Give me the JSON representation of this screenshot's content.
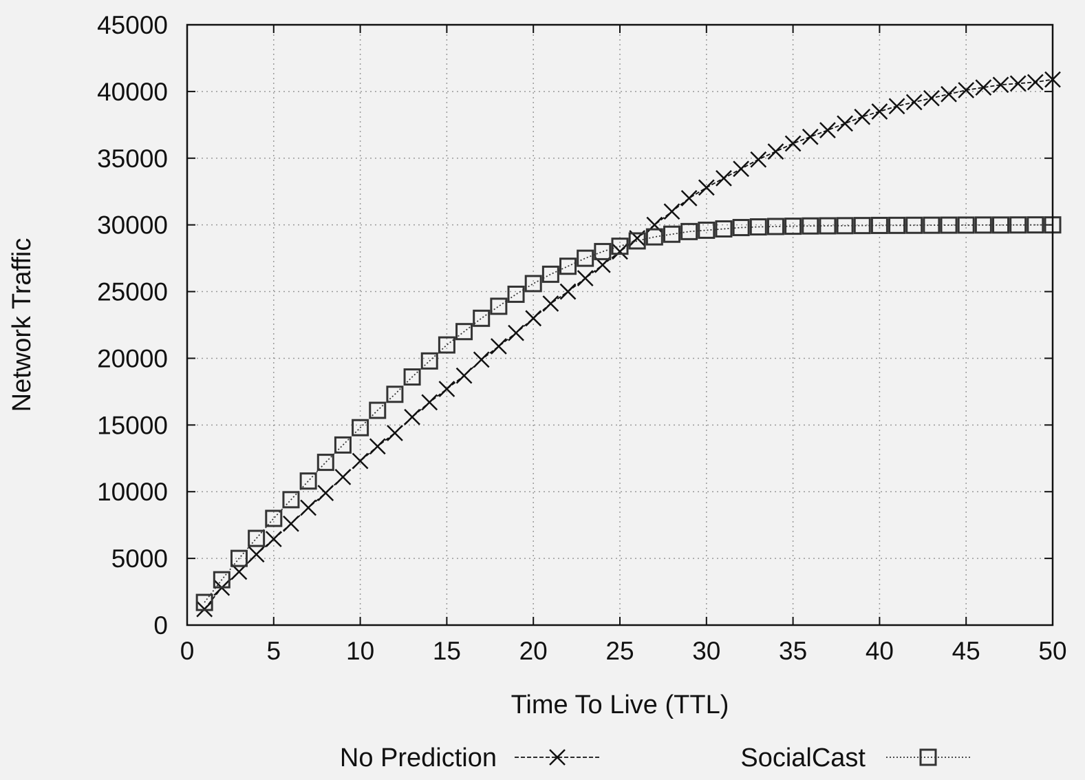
{
  "chart_data": {
    "type": "line",
    "title": "",
    "xlabel": "Time To Live (TTL)",
    "ylabel": "Network Traffic",
    "xlim": [
      0,
      50
    ],
    "ylim": [
      0,
      45000
    ],
    "xticks": [
      0,
      5,
      10,
      15,
      20,
      25,
      30,
      35,
      40,
      45,
      50
    ],
    "yticks": [
      0,
      5000,
      10000,
      15000,
      20000,
      25000,
      30000,
      35000,
      40000,
      45000
    ],
    "grid": true,
    "legend_position": "bottom",
    "x": [
      1,
      2,
      3,
      4,
      5,
      6,
      7,
      8,
      9,
      10,
      11,
      12,
      13,
      14,
      15,
      16,
      17,
      18,
      19,
      20,
      21,
      22,
      23,
      24,
      25,
      26,
      27,
      28,
      29,
      30,
      31,
      32,
      33,
      34,
      35,
      36,
      37,
      38,
      39,
      40,
      41,
      42,
      43,
      44,
      45,
      46,
      47,
      48,
      49,
      50
    ],
    "series": [
      {
        "name": "No Prediction",
        "marker": "x",
        "line_style": "dashed",
        "color": "#111111",
        "values": [
          1200,
          2800,
          4000,
          5300,
          6450,
          7600,
          8800,
          9900,
          11100,
          12300,
          13400,
          14400,
          15600,
          16700,
          17700,
          18700,
          19900,
          20900,
          21900,
          23000,
          24100,
          25000,
          26000,
          27000,
          28000,
          29000,
          30000,
          31000,
          32000,
          32800,
          33500,
          34200,
          34900,
          35500,
          36100,
          36600,
          37100,
          37600,
          38100,
          38500,
          38900,
          39200,
          39500,
          39800,
          40100,
          40300,
          40500,
          40600,
          40700,
          40900
        ]
      },
      {
        "name": "SocialCast",
        "marker": "square",
        "line_style": "dotted",
        "color": "#333333",
        "values": [
          1700,
          3400,
          5000,
          6500,
          8000,
          9400,
          10800,
          12200,
          13500,
          14800,
          16100,
          17300,
          18600,
          19800,
          21000,
          22000,
          23000,
          23900,
          24800,
          25600,
          26300,
          26900,
          27500,
          28000,
          28400,
          28800,
          29100,
          29300,
          29500,
          29600,
          29700,
          29800,
          29850,
          29880,
          29900,
          29920,
          29930,
          29940,
          29950,
          29960,
          29965,
          29970,
          29975,
          29980,
          29985,
          29990,
          29990,
          29995,
          30000,
          30000
        ]
      }
    ]
  }
}
